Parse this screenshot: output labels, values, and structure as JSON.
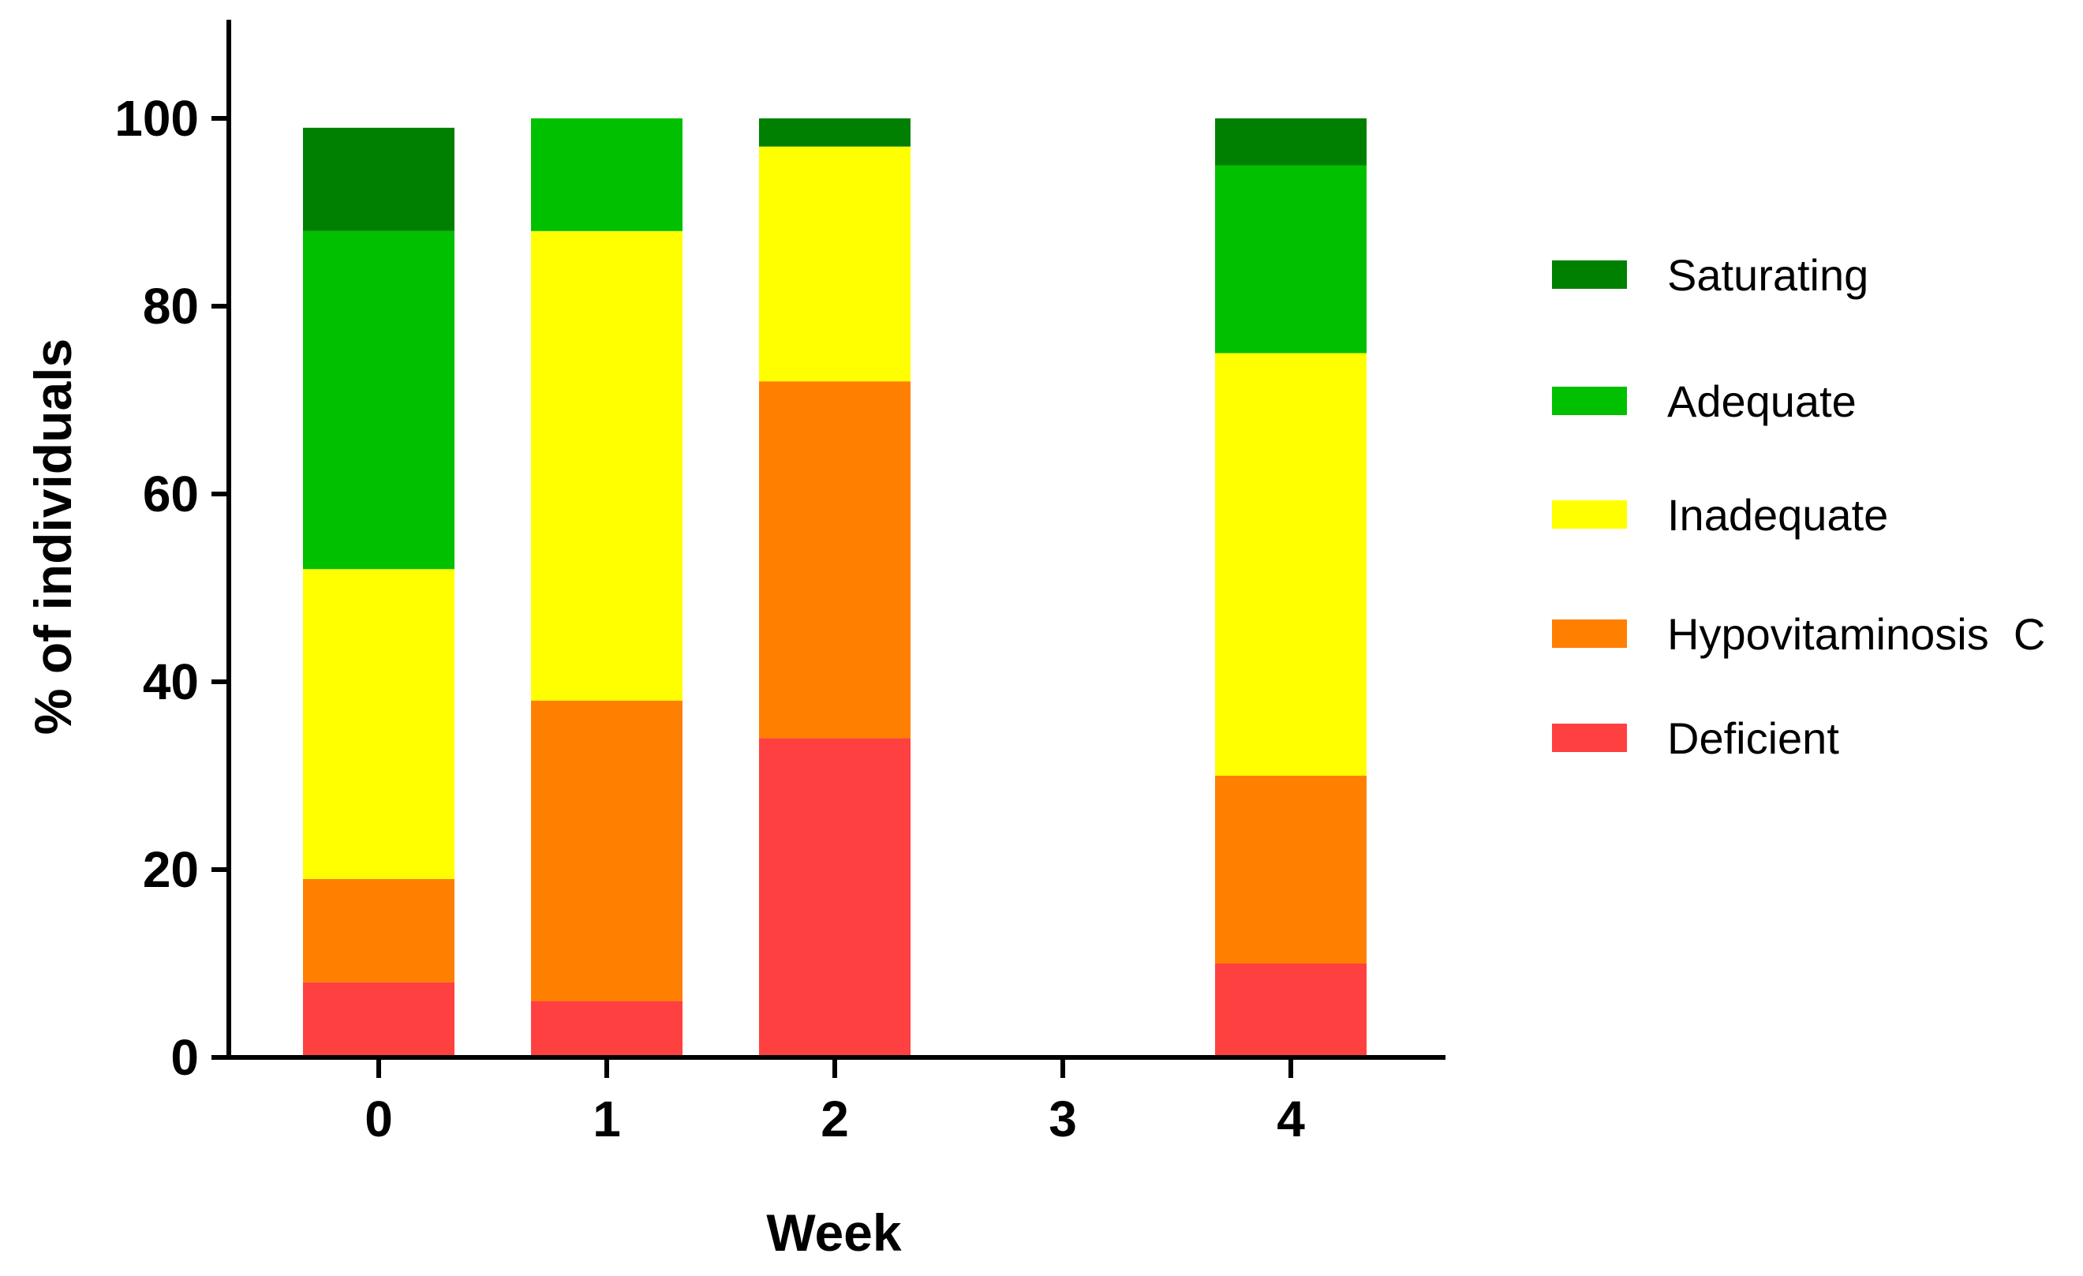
{
  "chart_data": {
    "type": "bar",
    "stacked": true,
    "title": "",
    "xlabel": "Week",
    "ylabel": "% of individuals",
    "ylim": [
      0,
      110
    ],
    "yticks": [
      0,
      20,
      40,
      60,
      80,
      100
    ],
    "categories": [
      "0",
      "1",
      "2",
      "3",
      "4"
    ],
    "series": [
      {
        "name": "Deficient",
        "color": "#ff4040",
        "values": [
          8,
          6,
          34,
          0,
          10
        ]
      },
      {
        "name": "Hypovitaminosis  C",
        "color": "#ff8000",
        "values": [
          11,
          32,
          38,
          0,
          20
        ]
      },
      {
        "name": "Inadequate",
        "color": "#ffff00",
        "values": [
          33,
          50,
          25,
          0,
          45
        ]
      },
      {
        "name": "Adequate",
        "color": "#00c000",
        "values": [
          36,
          12,
          0,
          0,
          20
        ]
      },
      {
        "name": "Saturating",
        "color": "#008000",
        "values": [
          11,
          0,
          3,
          0,
          5
        ]
      }
    ],
    "legend": {
      "position": "right",
      "order": [
        "Saturating",
        "Adequate",
        "Inadequate",
        "Hypovitaminosis  C",
        "Deficient"
      ]
    }
  }
}
